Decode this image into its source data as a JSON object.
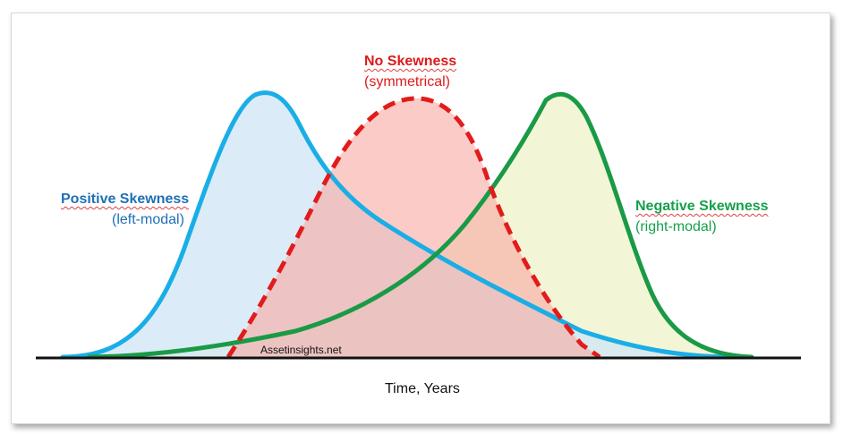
{
  "labels": {
    "positive": {
      "title": "Positive Skewness",
      "subtitle": "(left-modal)",
      "color": "#1f6fb5"
    },
    "none": {
      "title": "No Skewness",
      "subtitle": "(symmetrical)",
      "color": "#dd1a1a"
    },
    "negative": {
      "title": "Negative Skewness",
      "subtitle": "(right-modal)",
      "color": "#16a04a"
    }
  },
  "watermark": "Assetinsights.net",
  "x_axis_label": "Time, Years",
  "curves": {
    "positive": {
      "stroke": "#1aaee6",
      "fill": "#d8edf9"
    },
    "symmetric": {
      "stroke": "#e21b1b",
      "fill": "#fbc5c2",
      "dashed": true
    },
    "negative": {
      "stroke": "#1a9a46",
      "fill": "#f1f4cf"
    }
  }
}
